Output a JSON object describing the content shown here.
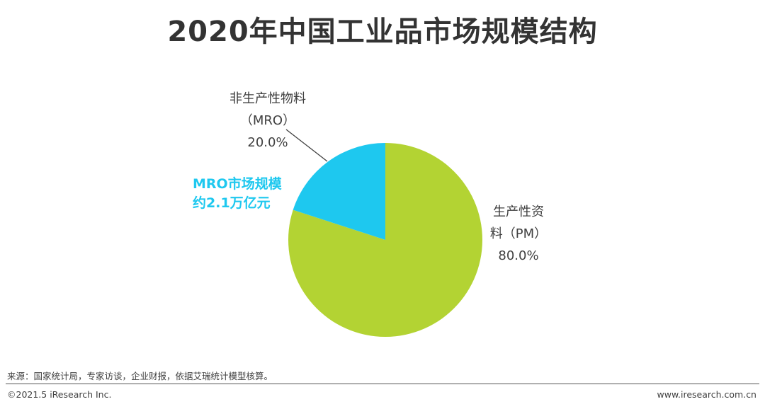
{
  "title": "2020年中国工业品市场规模结构",
  "chart_data": {
    "type": "pie",
    "title": "2020年中国工业品市场规模结构",
    "slices": [
      {
        "label_line1": "非生产性物料",
        "label_line2": "（MRO）",
        "pct_label": "20.0%",
        "value": 20.0,
        "color": "#1ec8ef"
      },
      {
        "label_line1": "生产性资",
        "label_line2": "料（PM）",
        "pct_label": "80.0%",
        "value": 80.0,
        "color": "#b3d333"
      }
    ],
    "annotation_line1": "MRO市场规模",
    "annotation_line2": "约2.1万亿元",
    "start": "12 o'clock",
    "direction": "counter-clockwise for MRO slice"
  },
  "source": "来源：国家统计局，专家访谈，企业财报，依据艾瑞统计模型核算。",
  "footer": {
    "copyright": "©2021.5 iResearch Inc.",
    "website": "www.iresearch.com.cn"
  }
}
